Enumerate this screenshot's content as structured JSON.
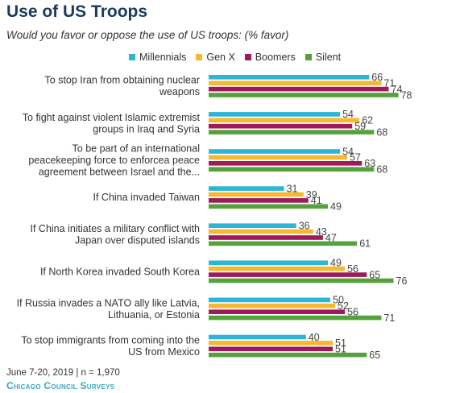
{
  "title": "Use of US Troops",
  "subtitle": "Would you favor or oppose the use of US troops: (% favor)",
  "footer": {
    "note": "June 7-20, 2019 | n = 1,970",
    "brand": "Chicago Council Surveys"
  },
  "chart_data": {
    "type": "bar",
    "orientation": "horizontal",
    "legend_position": "top",
    "grid": false,
    "categories": [
      [
        "To stop Iran from obtaining nuclear",
        "weapons"
      ],
      [
        "To fight against violent Islamic extremist",
        "groups in Iraq and Syria"
      ],
      [
        "To be part of an international",
        "peacekeeping force to enforcea peace",
        "agreement between Israel and the..."
      ],
      [
        "If China invaded Taiwan"
      ],
      [
        "If China initiates a military conflict with",
        "Japan over disputed islands"
      ],
      [
        "If North Korea invaded South Korea"
      ],
      [
        "If Russia invades a NATO ally like Latvia,",
        "Lithuania, or Estonia"
      ],
      [
        "To stop immigrants from coming into the",
        "US from Mexico"
      ]
    ],
    "series": [
      {
        "name": "Millennials",
        "color": "#2bb5d6",
        "values": [
          66,
          54,
          54,
          31,
          36,
          49,
          50,
          40
        ]
      },
      {
        "name": "Gen X",
        "color": "#f7b731",
        "values": [
          71,
          62,
          57,
          39,
          43,
          56,
          52,
          51
        ]
      },
      {
        "name": "Boomers",
        "color": "#a0195a",
        "values": [
          74,
          59,
          63,
          41,
          47,
          65,
          56,
          51
        ]
      },
      {
        "name": "Silent",
        "color": "#55a13c",
        "values": [
          78,
          68,
          68,
          49,
          61,
          76,
          71,
          65
        ]
      }
    ],
    "xlim": [
      0,
      100
    ]
  }
}
